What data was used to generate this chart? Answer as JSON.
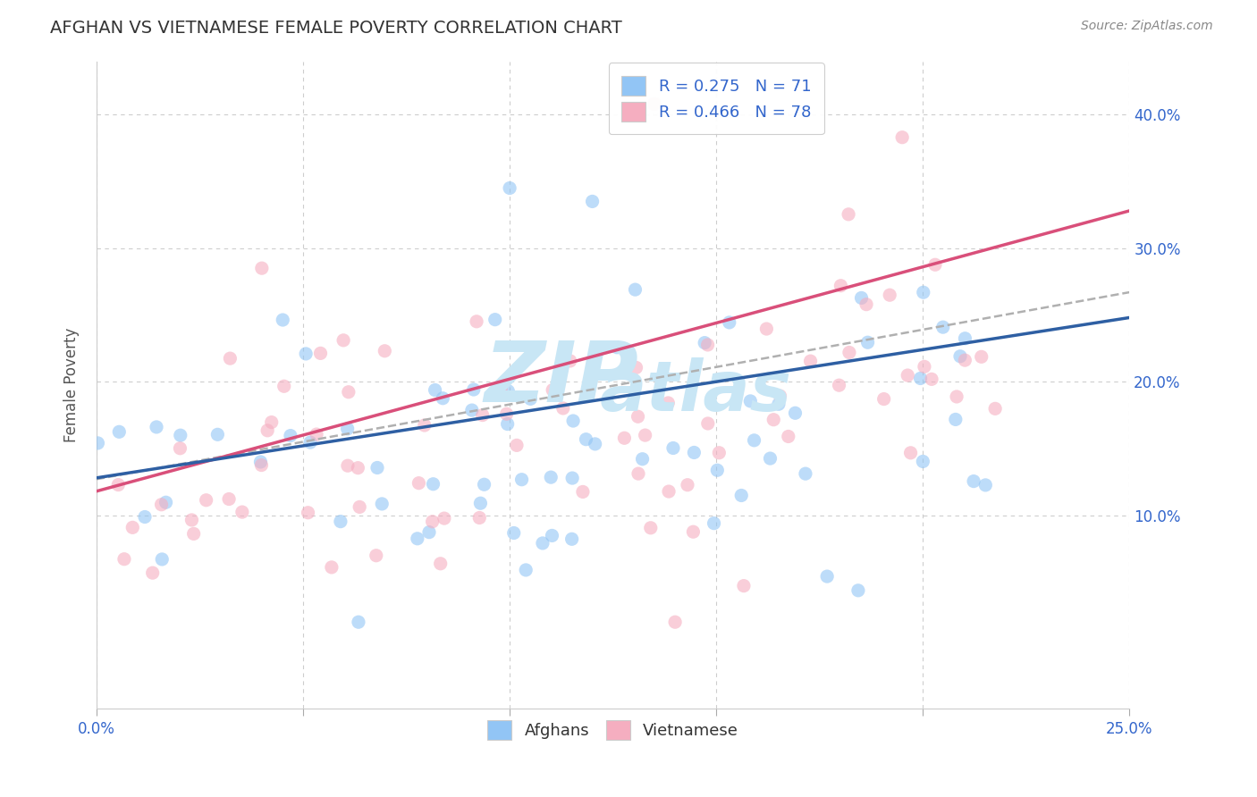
{
  "title": "AFGHAN VS VIETNAMESE FEMALE POVERTY CORRELATION CHART",
  "source": "Source: ZipAtlas.com",
  "ylabel": "Female Poverty",
  "yticks": [
    "10.0%",
    "20.0%",
    "30.0%",
    "40.0%"
  ],
  "ytick_values": [
    0.1,
    0.2,
    0.3,
    0.4
  ],
  "xlim": [
    0.0,
    0.25
  ],
  "ylim": [
    -0.045,
    0.44
  ],
  "afghan_R": 0.275,
  "afghan_N": 71,
  "vietnamese_R": 0.466,
  "vietnamese_N": 78,
  "afghan_color": "#92c5f5",
  "vietnamese_color": "#f5aec0",
  "afghan_line_color": "#2e5fa3",
  "vietnamese_line_color": "#d94f7a",
  "dashed_line_color": "#b0b0b0",
  "watermark_top": "ZIP",
  "watermark_bottom": "atlas",
  "watermark_color": "#c8e6f5",
  "background_color": "#ffffff",
  "grid_color": "#c8c8c8",
  "title_color": "#333333",
  "source_color": "#888888",
  "scatter_alpha": 0.6,
  "scatter_size": 120,
  "right_tick_color": "#3366cc"
}
